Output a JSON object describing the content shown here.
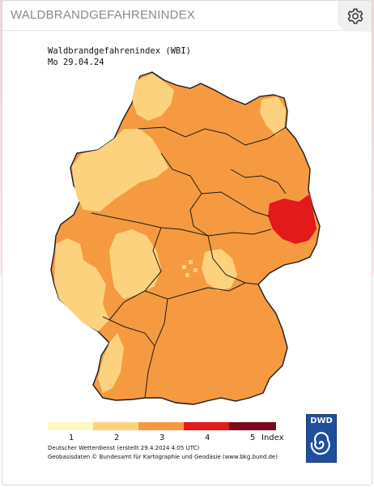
{
  "card": {
    "title": "WALDBRANDGEFAHRENINDEX"
  },
  "toolbar": {
    "settings_icon": "gear-icon"
  },
  "map": {
    "title": "Waldbrandgefahrenindex (WBI)",
    "date": "Mo 29.04.24",
    "legend": [
      {
        "label": "1",
        "color": "#fff7c0"
      },
      {
        "label": "2",
        "color": "#fdd27f"
      },
      {
        "label": "3",
        "color": "#f59a41"
      },
      {
        "label": "4",
        "color": "#e31a1c"
      },
      {
        "label": "5",
        "color": "#7a0a1e"
      }
    ],
    "legend_unit": "Index",
    "credit_line1": "Deutscher Wetterdienst (erstellt 29.4.2024 4:05 UTC)",
    "credit_line2": "Geobasisdaten © Bundesamt für Kartographie und Geodäsie (www.bkg.bund.de)",
    "logo_text": "DWD"
  }
}
